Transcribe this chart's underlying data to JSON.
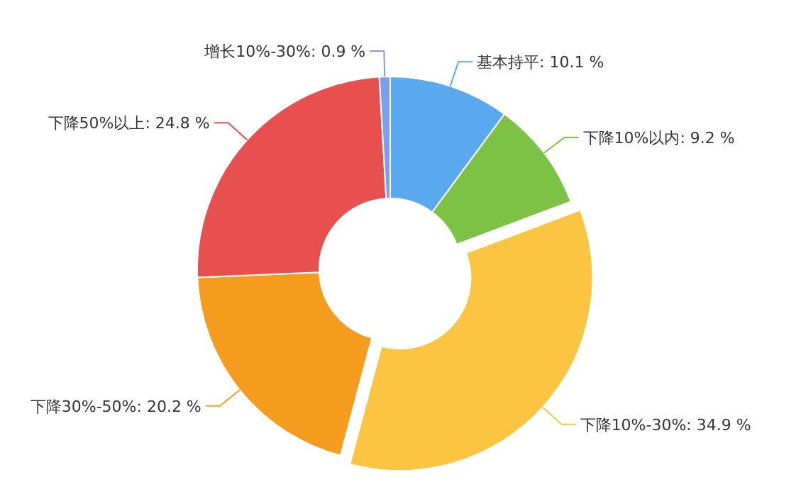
{
  "chart_data": {
    "type": "donut",
    "categories": [
      "基本持平",
      "下降10%以内",
      "下降10%-30%",
      "下降30%-50%",
      "下降50%以上",
      "增长10%-30%"
    ],
    "values": [
      10.1,
      9.2,
      34.9,
      20.2,
      24.8,
      0.9
    ],
    "value_labels": [
      "10.1 %",
      "9.2 %",
      "34.9 %",
      "20.2 %",
      "24.8 %",
      "0.9 %"
    ],
    "colors": [
      "#5aa9ee",
      "#7cc245",
      "#fbc541",
      "#f59c1f",
      "#e84f4f",
      "#7b9ef0"
    ],
    "legend": false
  }
}
